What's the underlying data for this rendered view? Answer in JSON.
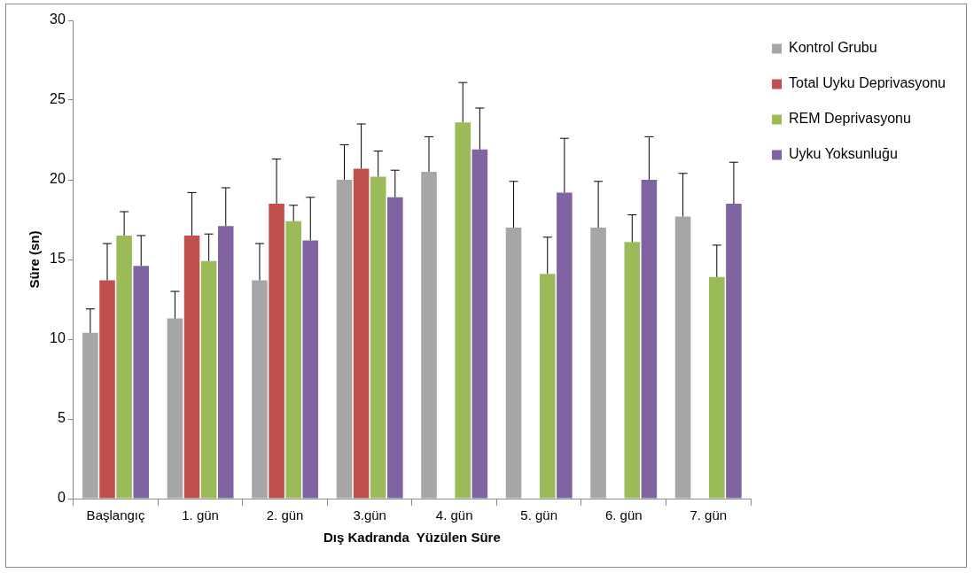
{
  "chart_data": {
    "type": "bar",
    "xlabel": "Dış Kadranda  Yüzülen Süre",
    "ylabel": "Süre (sn)",
    "categories": [
      "Başlangıç",
      "1. gün",
      "2. gün",
      "3.gün",
      "4. gün",
      "5. gün",
      "6. gün",
      "7. gün"
    ],
    "ylim": [
      0,
      30
    ],
    "yticks": [
      0,
      5,
      10,
      15,
      20,
      25,
      30
    ],
    "grid": false,
    "legend": "right",
    "series": [
      {
        "name": "Kontrol Grubu",
        "color": "#a6a6a6",
        "values": [
          10.4,
          11.3,
          13.7,
          20.0,
          20.5,
          17.0,
          17.0,
          17.7
        ],
        "errors": [
          [
            10.4,
            11.9
          ],
          [
            11.3,
            13.0
          ],
          [
            13.7,
            16.0
          ],
          [
            20.0,
            22.2
          ],
          [
            20.5,
            22.7
          ],
          [
            17.0,
            19.9
          ],
          [
            17.0,
            19.9
          ],
          [
            17.7,
            20.4
          ]
        ]
      },
      {
        "name": "Total Uyku Deprivasyonu",
        "color": "#c0504d",
        "values": [
          13.7,
          16.5,
          18.5,
          20.7,
          null,
          null,
          null,
          null
        ],
        "errors": [
          [
            13.7,
            16.0
          ],
          [
            16.5,
            19.2
          ],
          [
            18.5,
            21.3
          ],
          [
            20.7,
            23.5
          ],
          null,
          null,
          null,
          null
        ]
      },
      {
        "name": "REM Deprivasyonu",
        "color": "#9bbb59",
        "values": [
          16.5,
          14.9,
          17.4,
          20.2,
          23.6,
          14.1,
          16.1,
          13.9
        ],
        "errors": [
          [
            16.5,
            18.0
          ],
          [
            14.9,
            16.6
          ],
          [
            17.4,
            18.4
          ],
          [
            20.2,
            21.8
          ],
          [
            23.6,
            26.1
          ],
          [
            14.1,
            16.4
          ],
          [
            16.1,
            17.8
          ],
          [
            13.9,
            15.9
          ]
        ]
      },
      {
        "name": "Uyku Yoksunluğu",
        "color": "#8064a2",
        "values": [
          14.6,
          17.1,
          16.2,
          18.9,
          21.9,
          19.2,
          20.0,
          18.5
        ],
        "errors": [
          [
            14.6,
            16.5
          ],
          [
            17.1,
            19.5
          ],
          [
            16.2,
            18.9
          ],
          [
            18.9,
            20.6
          ],
          [
            21.9,
            24.5
          ],
          [
            19.2,
            22.6
          ],
          [
            20.0,
            22.7
          ],
          [
            18.5,
            21.1
          ]
        ]
      }
    ]
  }
}
